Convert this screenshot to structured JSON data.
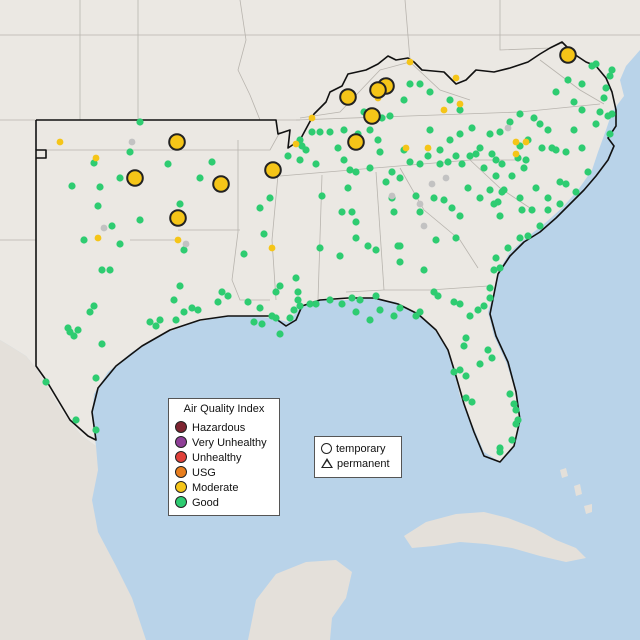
{
  "legend_aqi": {
    "title": "Air Quality Index",
    "categories": [
      {
        "label": "Hazardous",
        "color": "#7e2431"
      },
      {
        "label": "Very Unhealthy",
        "color": "#8f3f97"
      },
      {
        "label": "Unhealthy",
        "color": "#e0403a"
      },
      {
        "label": "USG",
        "color": "#e87e1e"
      },
      {
        "label": "Moderate",
        "color": "#f5c518"
      },
      {
        "label": "Good",
        "color": "#2ecc71"
      }
    ]
  },
  "legend_type": {
    "temporary": "temporary",
    "permanent": "permanent"
  },
  "colors": {
    "water": "#b9d3e9",
    "land": "#ebe8e3",
    "no_data": "#c2c2c2"
  },
  "monitors_summary": {
    "moderate_large_count": 12,
    "moderate_small_count": 17,
    "good_count": 242,
    "no_data_count": 9
  }
}
